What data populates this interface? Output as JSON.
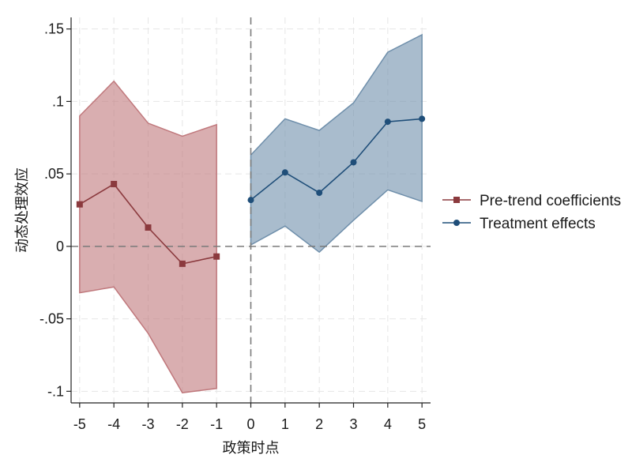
{
  "chart_data": {
    "type": "line",
    "title": "",
    "xlabel": "政策时点",
    "ylabel": "动态处理效应",
    "xlim": [
      -5.25,
      5.25
    ],
    "ylim": [
      -0.108,
      0.158
    ],
    "x_ticks": [
      -5,
      -4,
      -3,
      -2,
      -1,
      0,
      1,
      2,
      3,
      4,
      5
    ],
    "x_tick_labels": [
      "-5",
      "-4",
      "-3",
      "-2",
      "-1",
      "0",
      "1",
      "2",
      "3",
      "4",
      "5"
    ],
    "y_ticks": [
      -0.1,
      -0.05,
      0,
      0.05,
      0.1,
      0.15
    ],
    "y_tick_labels": [
      "-.1",
      "-.05",
      "0",
      ".05",
      ".1",
      ".15"
    ],
    "grid": true,
    "reference_lines": {
      "x": 0,
      "y": 0,
      "style": "dashed"
    },
    "legend": {
      "position": "right"
    },
    "series": [
      {
        "name": "Pre-trend coefficients",
        "marker": "square",
        "color": "#8B3A3E",
        "band_color": "#C0787C",
        "x": [
          -5,
          -4,
          -3,
          -2,
          -1
        ],
        "values": [
          0.029,
          0.043,
          0.013,
          -0.012,
          -0.007
        ],
        "ci_lower": [
          -0.032,
          -0.028,
          -0.06,
          -0.101,
          -0.098
        ],
        "ci_upper": [
          0.09,
          0.114,
          0.085,
          0.076,
          0.084
        ]
      },
      {
        "name": "Treatment effects",
        "marker": "circle",
        "color": "#1F4E79",
        "band_color": "#6F8FAB",
        "x": [
          0,
          1,
          2,
          3,
          4,
          5
        ],
        "values": [
          0.032,
          0.051,
          0.037,
          0.058,
          0.086,
          0.088
        ],
        "ci_lower": [
          0.001,
          0.014,
          -0.004,
          0.018,
          0.039,
          0.031
        ],
        "ci_upper": [
          0.063,
          0.088,
          0.08,
          0.099,
          0.134,
          0.146
        ]
      }
    ]
  }
}
